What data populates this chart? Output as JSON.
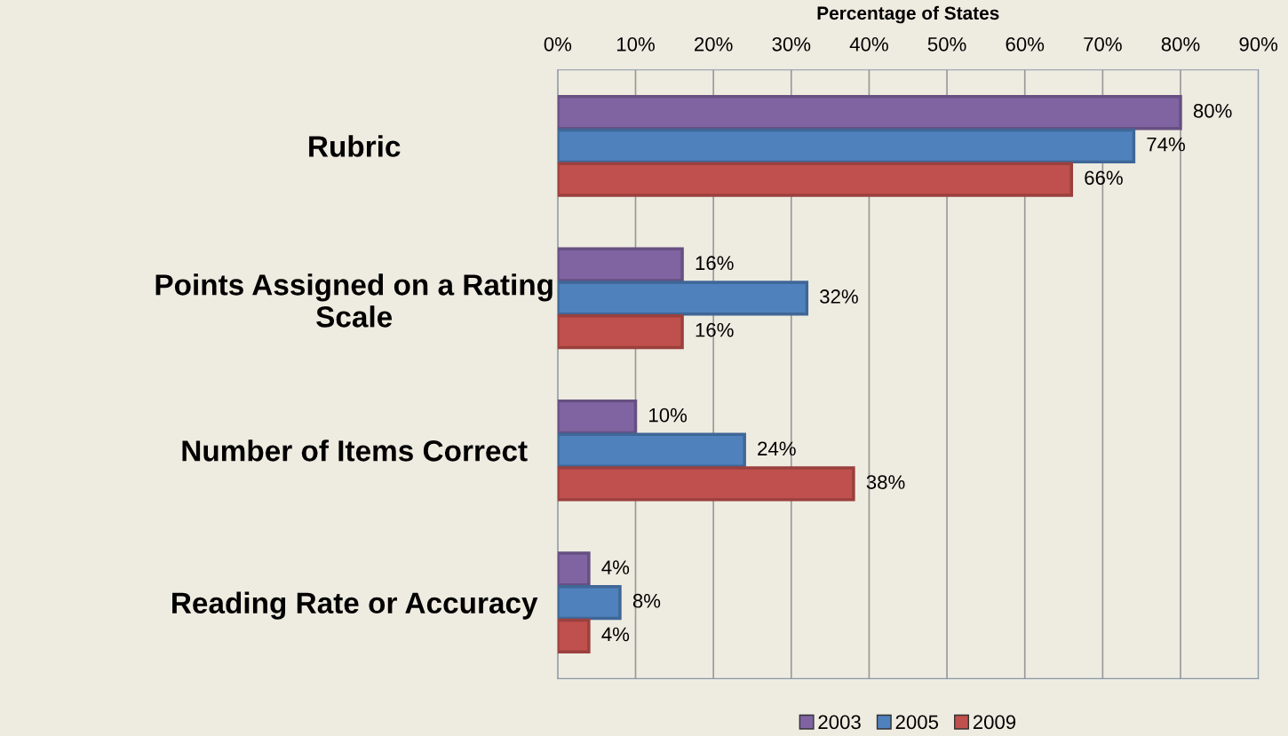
{
  "chart_data": {
    "type": "bar",
    "orientation": "horizontal",
    "xlabel": "Percentage of States",
    "categories": [
      "Rubric",
      "Points Assigned on a Rating\nScale",
      "Number of Items Correct",
      "Reading Rate or Accuracy"
    ],
    "series": [
      {
        "name": "2003",
        "color": "#8064a2",
        "values": [
          80,
          16,
          10,
          4
        ],
        "value_labels": [
          "80%",
          "16%",
          "10%",
          "4%"
        ]
      },
      {
        "name": "2005",
        "color": "#4f81bd",
        "values": [
          74,
          32,
          24,
          8
        ],
        "value_labels": [
          "74%",
          "32%",
          "24%",
          "8%"
        ]
      },
      {
        "name": "2009",
        "color": "#c0504d",
        "values": [
          66,
          16,
          38,
          4
        ],
        "value_labels": [
          "66%",
          "16%",
          "38%",
          "4%"
        ]
      }
    ],
    "xlim": [
      0,
      90
    ],
    "xticks": [
      {
        "value": 0,
        "label": "0%"
      },
      {
        "value": 10,
        "label": "10%"
      },
      {
        "value": 20,
        "label": "20%"
      },
      {
        "value": 30,
        "label": "30%"
      },
      {
        "value": 40,
        "label": "40%"
      },
      {
        "value": 50,
        "label": "50%"
      },
      {
        "value": 60,
        "label": "60%"
      },
      {
        "value": 70,
        "label": "70%"
      },
      {
        "value": 80,
        "label": "80%"
      },
      {
        "value": 90,
        "label": "90%"
      }
    ],
    "grid": "x",
    "legend": "bottom"
  }
}
